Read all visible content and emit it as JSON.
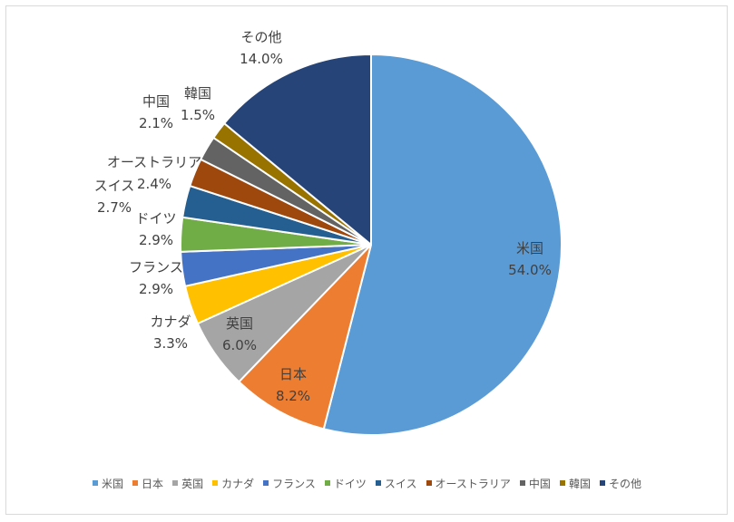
{
  "chart_data": {
    "type": "pie",
    "title": "",
    "unit": "%",
    "legend_position": "bottom",
    "slices": [
      {
        "label": "米国",
        "value": 54.0,
        "display": "54.0%",
        "color": "#5b9bd5"
      },
      {
        "label": "日本",
        "value": 8.2,
        "display": "8.2%",
        "color": "#ed7d31"
      },
      {
        "label": "英国",
        "value": 6.0,
        "display": "6.0%",
        "color": "#a5a5a5"
      },
      {
        "label": "カナダ",
        "value": 3.3,
        "display": "3.3%",
        "color": "#ffc000"
      },
      {
        "label": "フランス",
        "value": 2.9,
        "display": "2.9%",
        "color": "#4472c4"
      },
      {
        "label": "ドイツ",
        "value": 2.9,
        "display": "2.9%",
        "color": "#70ad47"
      },
      {
        "label": "スイス",
        "value": 2.7,
        "display": "2.7%",
        "color": "#255e91"
      },
      {
        "label": "オーストラリア",
        "value": 2.4,
        "display": "2.4%",
        "color": "#9e480e"
      },
      {
        "label": "中国",
        "value": 2.1,
        "display": "2.1%",
        "color": "#636363"
      },
      {
        "label": "韓国",
        "value": 1.5,
        "display": "1.5%",
        "color": "#997300"
      },
      {
        "label": "その他",
        "value": 14.0,
        "display": "14.0%",
        "color": "#264478"
      }
    ]
  }
}
